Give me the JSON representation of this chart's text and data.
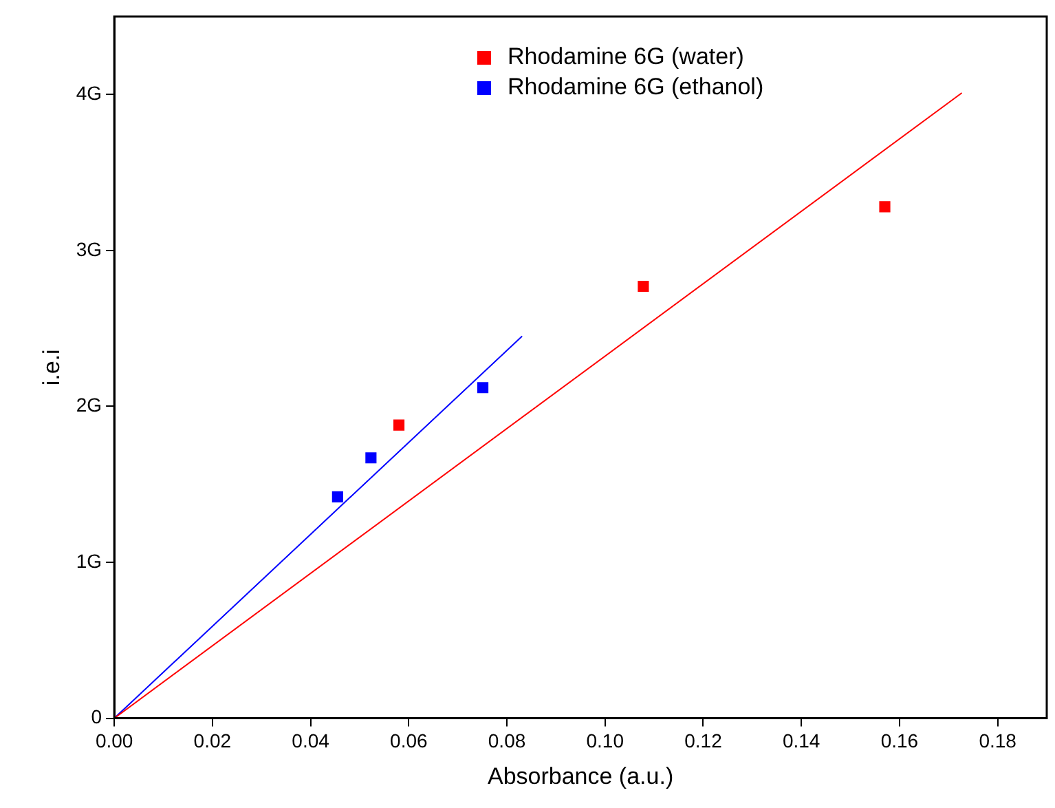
{
  "chart_data": {
    "type": "scatter",
    "xlabel": "Absorbance (a.u.)",
    "ylabel": "i.e.i",
    "xlim": [
      0,
      0.19
    ],
    "xticks": [
      {
        "value": 0,
        "label": "0.00"
      },
      {
        "value": 0.02,
        "label": "0.02"
      },
      {
        "value": 0.04,
        "label": "0.04"
      },
      {
        "value": 0.06,
        "label": "0.06"
      },
      {
        "value": 0.08,
        "label": "0.08"
      },
      {
        "value": 0.1,
        "label": "0.10"
      },
      {
        "value": 0.12,
        "label": "0.12"
      },
      {
        "value": 0.14,
        "label": "0.14"
      },
      {
        "value": 0.16,
        "label": "0.16"
      },
      {
        "value": 0.18,
        "label": "0.18"
      }
    ],
    "ylim": [
      0,
      4.5
    ],
    "yticks": [
      0,
      {
        "value": 1,
        "label": "1G"
      },
      {
        "value": 2,
        "label": "2G"
      },
      {
        "value": 3,
        "label": "3G"
      },
      {
        "value": 4,
        "label": "4G"
      }
    ],
    "grid": false,
    "legend": "top",
    "marker": "square",
    "series": [
      {
        "name": "Rhodamine 6G (water)",
        "color": "#ff0000",
        "x": [
          0.058,
          0.1078,
          0.157
        ],
        "values": [
          1.88,
          2.77,
          3.28
        ]
      },
      {
        "name": "Rhodamine 6G (ethanol)",
        "color": "#0000ff",
        "x": [
          0.0455,
          0.0523,
          0.0751
        ],
        "values": [
          1.42,
          1.67,
          2.12
        ]
      },
      {
        "type": "line",
        "color": "#ff0000",
        "marker": "none",
        "x": [
          0,
          0.1727
        ],
        "values": [
          0,
          4.01
        ]
      },
      {
        "type": "line",
        "color": "#0000ff",
        "marker": "none",
        "x": [
          0,
          0.0831
        ],
        "values": [
          0,
          2.45
        ]
      }
    ]
  }
}
